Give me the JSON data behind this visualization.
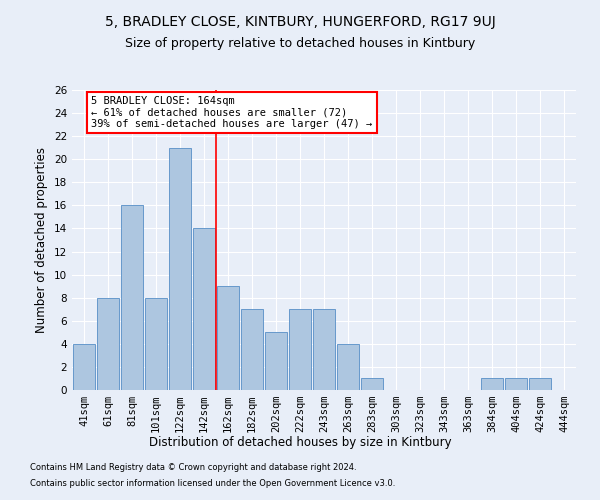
{
  "title": "5, BRADLEY CLOSE, KINTBURY, HUNGERFORD, RG17 9UJ",
  "subtitle": "Size of property relative to detached houses in Kintbury",
  "xlabel": "Distribution of detached houses by size in Kintbury",
  "ylabel": "Number of detached properties",
  "categories": [
    "41sqm",
    "61sqm",
    "81sqm",
    "101sqm",
    "122sqm",
    "142sqm",
    "162sqm",
    "182sqm",
    "202sqm",
    "222sqm",
    "243sqm",
    "263sqm",
    "283sqm",
    "303sqm",
    "323sqm",
    "343sqm",
    "363sqm",
    "384sqm",
    "404sqm",
    "424sqm",
    "444sqm"
  ],
  "values": [
    4,
    8,
    16,
    8,
    21,
    14,
    9,
    7,
    5,
    7,
    7,
    4,
    1,
    0,
    0,
    0,
    0,
    1,
    1,
    1,
    0
  ],
  "bar_color": "#adc6e0",
  "bar_edge_color": "#6699cc",
  "red_line_index": 5.5,
  "annotation_text": "5 BRADLEY CLOSE: 164sqm\n← 61% of detached houses are smaller (72)\n39% of semi-detached houses are larger (47) →",
  "annotation_box_color": "white",
  "annotation_box_edge": "red",
  "ylim": [
    0,
    26
  ],
  "yticks": [
    0,
    2,
    4,
    6,
    8,
    10,
    12,
    14,
    16,
    18,
    20,
    22,
    24,
    26
  ],
  "background_color": "#e8eef8",
  "footer1": "Contains HM Land Registry data © Crown copyright and database right 2024.",
  "footer2": "Contains public sector information licensed under the Open Government Licence v3.0.",
  "title_fontsize": 10,
  "subtitle_fontsize": 9,
  "tick_fontsize": 7.5,
  "label_fontsize": 8.5
}
